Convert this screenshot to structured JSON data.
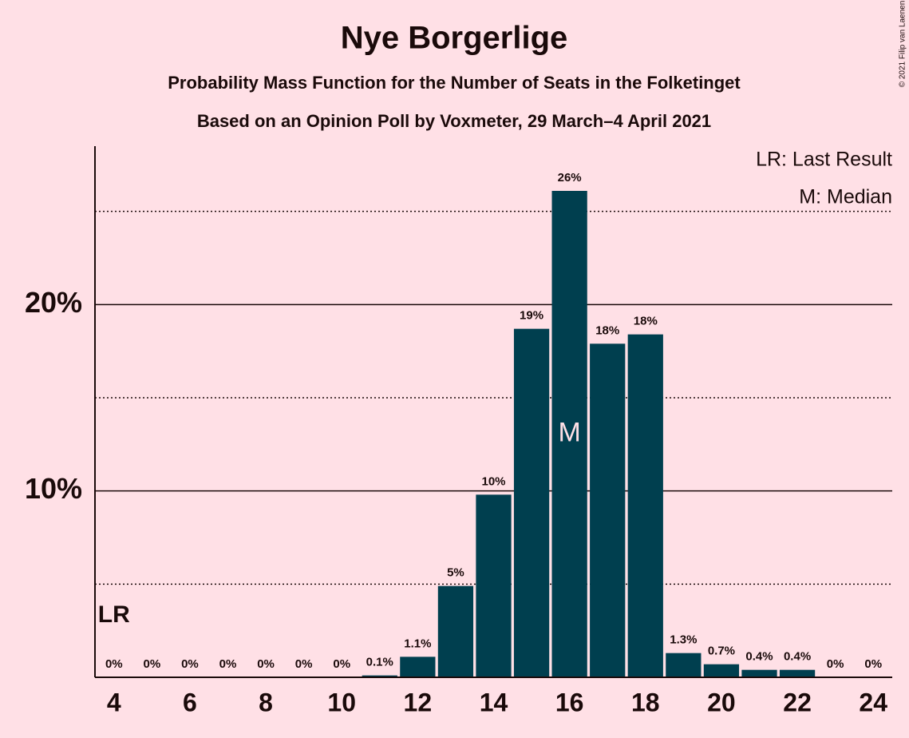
{
  "chart_data": {
    "type": "bar",
    "title": "Nye Borgerlige",
    "subtitles": [
      "Probability Mass Function for the Number of Seats in the Folketinget",
      "Based on an Opinion Poll by Voxmeter, 29 March–4 April 2021"
    ],
    "x": [
      4,
      5,
      6,
      7,
      8,
      9,
      10,
      11,
      12,
      13,
      14,
      15,
      16,
      17,
      18,
      19,
      20,
      21,
      22,
      23,
      24
    ],
    "values": [
      0,
      0,
      0,
      0,
      0,
      0,
      0,
      0.1,
      1.1,
      4.9,
      9.8,
      18.7,
      26.1,
      17.9,
      18.4,
      1.3,
      0.7,
      0.4,
      0.4,
      0,
      0
    ],
    "value_labels": [
      "0%",
      "0%",
      "0%",
      "0%",
      "0%",
      "0%",
      "0%",
      "0.1%",
      "1.1%",
      "5%",
      "10%",
      "19%",
      "26%",
      "18%",
      "18%",
      "1.3%",
      "0.7%",
      "0.4%",
      "0.4%",
      "0%",
      "0%"
    ],
    "color": "#003f4f",
    "xlim": [
      3.5,
      24.5
    ],
    "xticks": [
      4,
      6,
      8,
      10,
      12,
      14,
      16,
      18,
      20,
      22,
      24
    ],
    "ylim": [
      0,
      28.5
    ],
    "yticks": [
      {
        "value": 10,
        "label": "10%"
      },
      {
        "value": 20,
        "label": "20%"
      }
    ],
    "minor_yticks": [
      5,
      15,
      25
    ],
    "last_result": {
      "x": 4,
      "label": "LR"
    },
    "median": {
      "x": 16,
      "label": "M"
    },
    "legend": [
      "LR: Last Result",
      "M: Median"
    ],
    "copyright": "© 2021 Filip van Laenen"
  }
}
